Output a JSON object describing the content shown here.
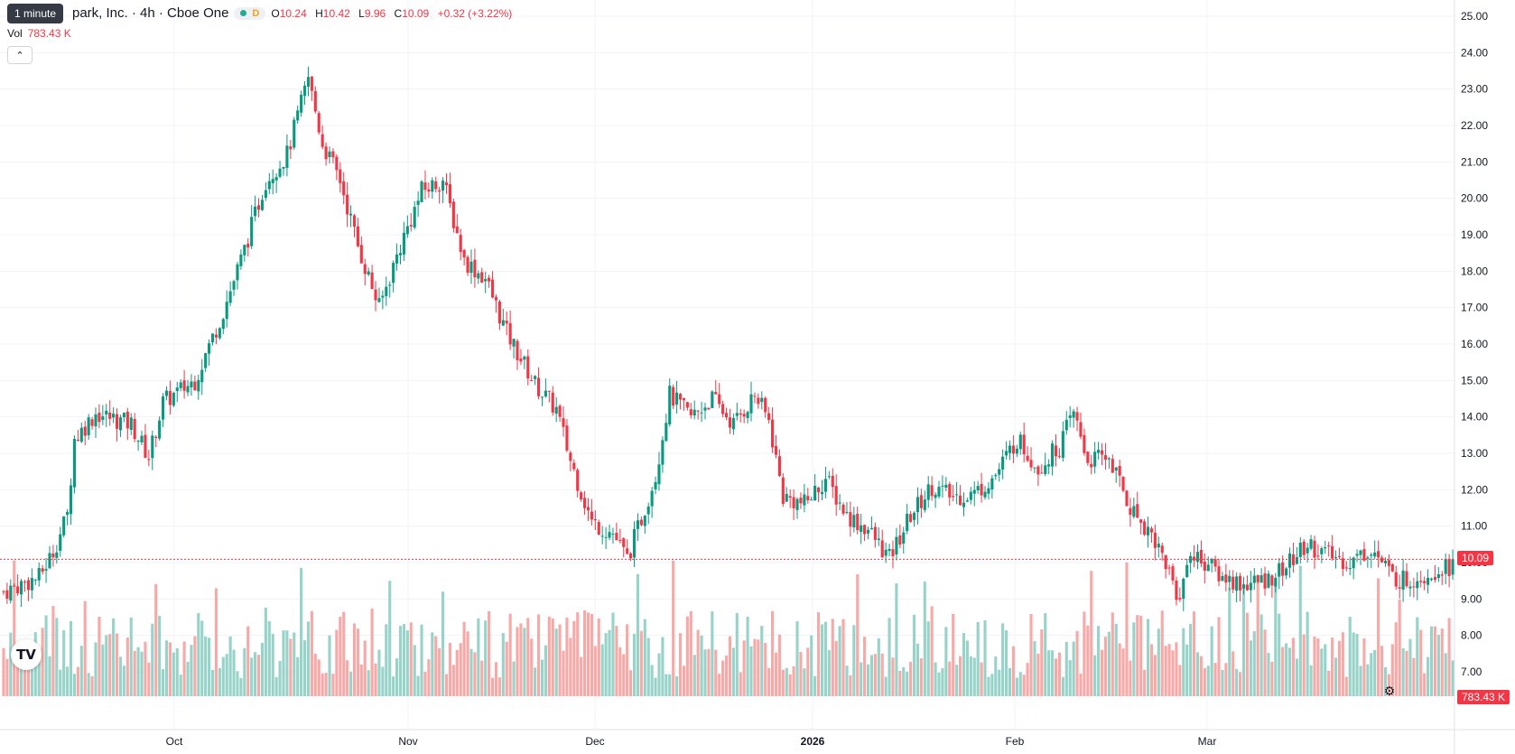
{
  "tooltip": "1 minute",
  "header": {
    "title": "park, Inc. · 4h · Cboe One",
    "status_letter": "D",
    "ohlc": {
      "o_label": "O",
      "o": "10.24",
      "h_label": "H",
      "h": "10.42",
      "l_label": "L",
      "l": "9.96",
      "c_label": "C",
      "c": "10.09",
      "change": "+0.32 (+3.22%)"
    },
    "vol_label": "Vol",
    "vol_value": "783.43 K"
  },
  "price_badge": "10.09",
  "volume_badge": "783.43 K",
  "logo_text": "TV",
  "colors": {
    "up": "#089981",
    "down": "#f23645",
    "vol_up": "#97d3c9",
    "vol_down": "#f7a9a7",
    "grid": "#f0f3fa",
    "last_price": "#f23645"
  },
  "chart_data": {
    "type": "candlestick",
    "interval": "4h",
    "y_axis_ticks": [
      "25.00",
      "24.00",
      "23.00",
      "22.00",
      "21.00",
      "20.00",
      "19.00",
      "18.00",
      "17.00",
      "16.00",
      "15.00",
      "14.00",
      "13.00",
      "12.00",
      "11.00",
      "10.00",
      "9.00",
      "8.00",
      "7.00"
    ],
    "ylim": [
      6.85,
      25.35
    ],
    "x_axis_ticks": [
      "Oct",
      "Nov",
      "Dec",
      "2026",
      "Feb",
      "Mar"
    ],
    "last_price": 10.09,
    "close_path": [
      [
        0,
        9.2
      ],
      [
        10,
        9.6
      ],
      [
        14,
        10.3
      ],
      [
        18,
        11.3
      ],
      [
        20,
        13.4
      ],
      [
        26,
        14.1
      ],
      [
        36,
        13.8
      ],
      [
        41,
        12.9
      ],
      [
        45,
        14.4
      ],
      [
        54,
        15.0
      ],
      [
        62,
        16.9
      ],
      [
        68,
        18.6
      ],
      [
        74,
        20.5
      ],
      [
        80,
        21.2
      ],
      [
        86,
        23.3
      ],
      [
        90,
        21.5
      ],
      [
        95,
        20.5
      ],
      [
        100,
        18.7
      ],
      [
        106,
        17.0
      ],
      [
        112,
        18.7
      ],
      [
        118,
        20.2
      ],
      [
        124,
        20.5
      ],
      [
        130,
        18.3
      ],
      [
        136,
        17.8
      ],
      [
        142,
        16.3
      ],
      [
        150,
        14.9
      ],
      [
        156,
        14.2
      ],
      [
        160,
        12.8
      ],
      [
        166,
        11.1
      ],
      [
        172,
        10.8
      ],
      [
        176,
        10.1
      ],
      [
        180,
        11.2
      ],
      [
        184,
        12.4
      ],
      [
        188,
        14.6
      ],
      [
        194,
        14.0
      ],
      [
        200,
        14.5
      ],
      [
        206,
        13.8
      ],
      [
        212,
        14.6
      ],
      [
        216,
        13.9
      ],
      [
        220,
        11.8
      ],
      [
        226,
        11.6
      ],
      [
        232,
        12.3
      ],
      [
        238,
        11.3
      ],
      [
        244,
        10.9
      ],
      [
        250,
        10.1
      ],
      [
        256,
        11.3
      ],
      [
        262,
        12.1
      ],
      [
        268,
        11.8
      ],
      [
        274,
        11.9
      ],
      [
        280,
        12.4
      ],
      [
        286,
        13.4
      ],
      [
        292,
        12.6
      ],
      [
        298,
        13.2
      ],
      [
        302,
        14.1
      ],
      [
        306,
        12.8
      ],
      [
        312,
        12.9
      ],
      [
        318,
        11.5
      ],
      [
        324,
        10.8
      ],
      [
        328,
        10.0
      ],
      [
        332,
        8.9
      ],
      [
        334,
        10.2
      ],
      [
        338,
        10.1
      ],
      [
        344,
        9.6
      ],
      [
        350,
        9.4
      ],
      [
        356,
        9.5
      ],
      [
        362,
        9.9
      ],
      [
        368,
        10.5
      ],
      [
        374,
        10.2
      ],
      [
        380,
        10.0
      ],
      [
        386,
        10.4
      ],
      [
        392,
        9.6
      ],
      [
        396,
        9.5
      ],
      [
        402,
        9.7
      ],
      [
        406,
        9.9
      ]
    ]
  }
}
